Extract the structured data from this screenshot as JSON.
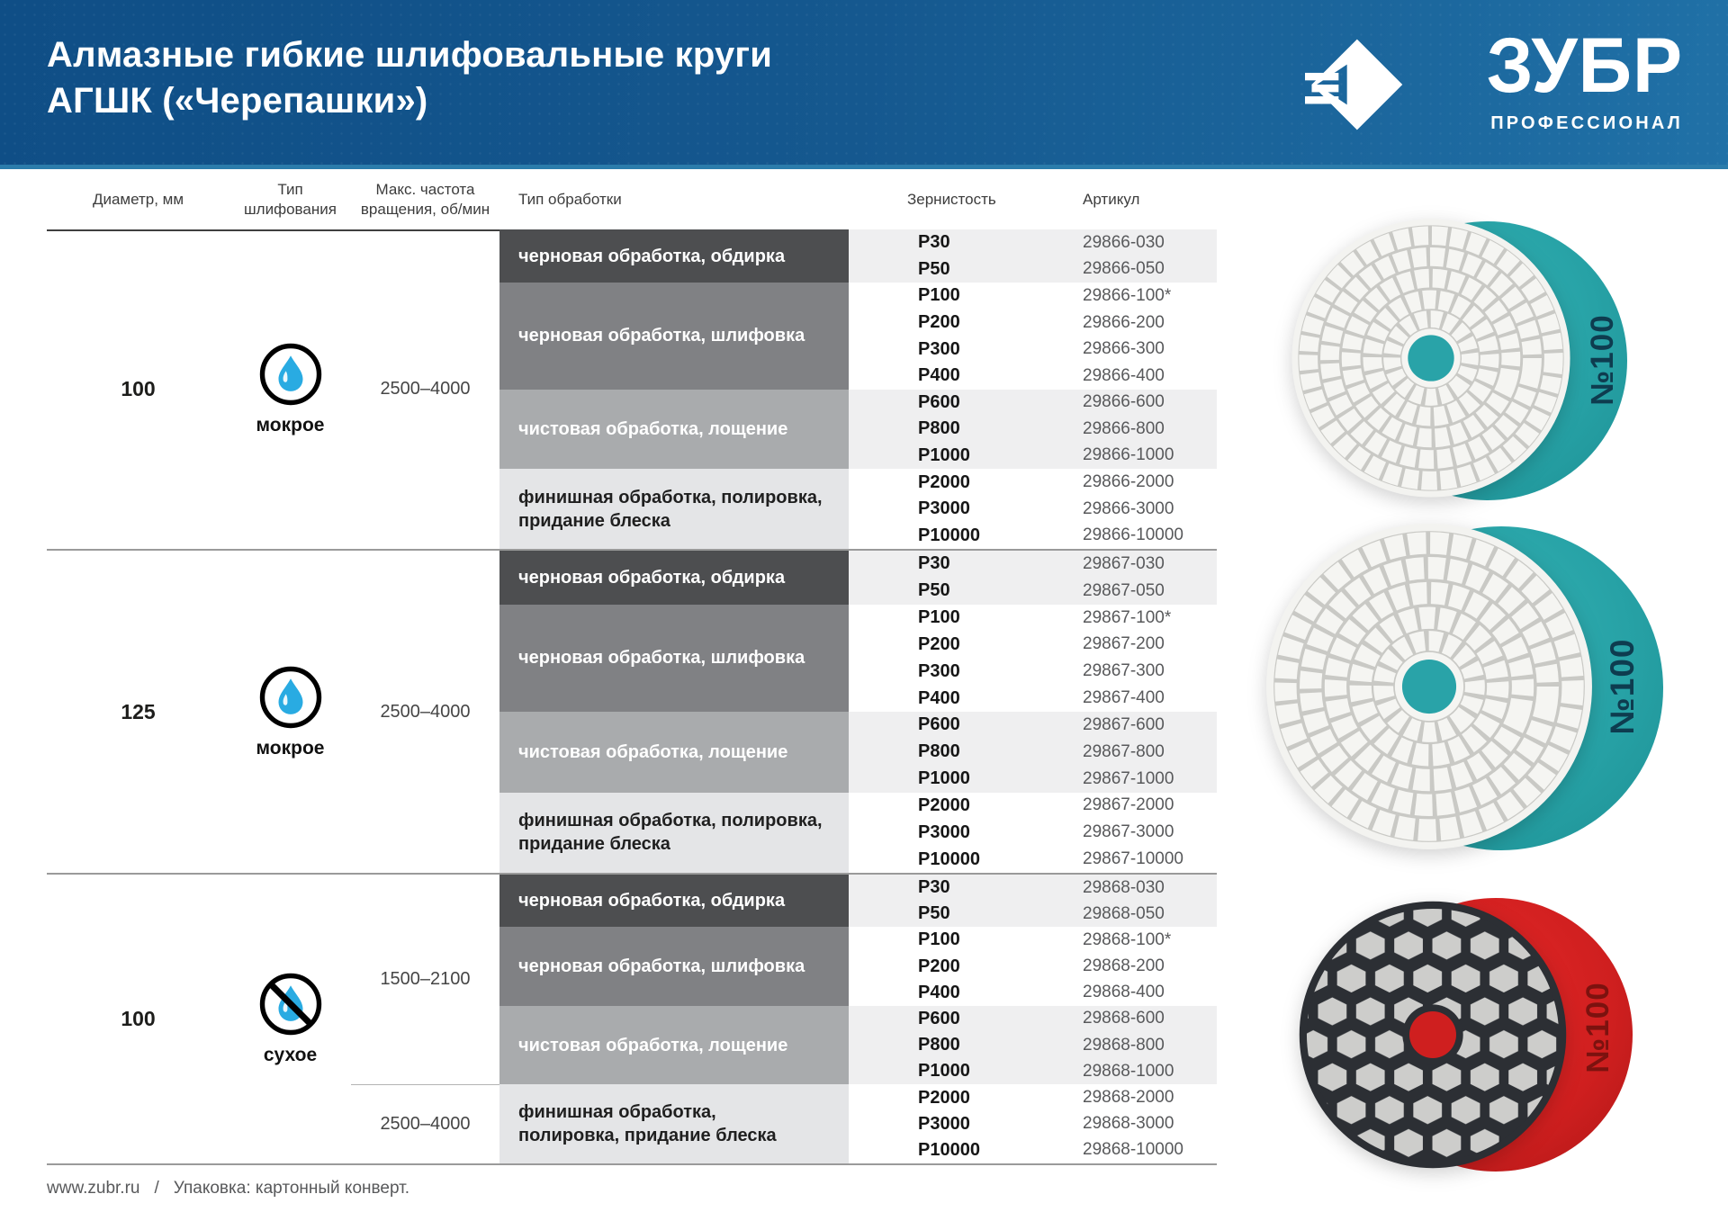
{
  "header": {
    "title_line1": "Алмазные гибкие шлифовальные круги",
    "title_line2": "АГШК («Черепашки»)",
    "brand": {
      "name": "ЗУБР",
      "subtitle": "ПРОФЕССИОНАЛ",
      "emblem_icon": "zubr-diamond-arrow-icon"
    },
    "background_color": "#15588f"
  },
  "table": {
    "columns": {
      "diameter": "Диаметр, мм",
      "grinding_type": "Тип шлифования",
      "max_speed": "Макс. частота\nвращения, об/мин",
      "processing_type": "Тип обработки",
      "grit": "Зернистость",
      "sku": "Артикул"
    },
    "groups": [
      {
        "diameter": "100",
        "grinding_type": "мокрое",
        "grinding_icon": "water-drop-icon",
        "speeds": [
          {
            "label": "2500–4000",
            "rows": 12
          }
        ],
        "blocks": [
          {
            "label": "черновая обработка, обдирка",
            "rows": [
              {
                "grit": "P30",
                "sku": "29866-030"
              },
              {
                "grit": "P50",
                "sku": "29866-050"
              }
            ]
          },
          {
            "label": "черновая обработка, шлифовка",
            "rows": [
              {
                "grit": "P100",
                "sku": "29866-100*"
              },
              {
                "grit": "P200",
                "sku": "29866-200"
              },
              {
                "grit": "P300",
                "sku": "29866-300"
              },
              {
                "grit": "P400",
                "sku": "29866-400"
              }
            ]
          },
          {
            "label": "чистовая обработка, лощение",
            "rows": [
              {
                "grit": "P600",
                "sku": "29866-600"
              },
              {
                "grit": "P800",
                "sku": "29866-800"
              },
              {
                "grit": "P1000",
                "sku": "29866-1000"
              }
            ]
          },
          {
            "label": "финишная обработка, полировка,\nпридание блеска",
            "rows": [
              {
                "grit": "P2000",
                "sku": "29866-2000"
              },
              {
                "grit": "P3000",
                "sku": "29866-3000"
              },
              {
                "grit": "P10000",
                "sku": "29866-10000"
              }
            ]
          }
        ]
      },
      {
        "diameter": "125",
        "grinding_type": "мокрое",
        "grinding_icon": "water-drop-icon",
        "speeds": [
          {
            "label": "2500–4000",
            "rows": 12
          }
        ],
        "blocks": [
          {
            "label": "черновая обработка, обдирка",
            "rows": [
              {
                "grit": "P30",
                "sku": "29867-030"
              },
              {
                "grit": "P50",
                "sku": "29867-050"
              }
            ]
          },
          {
            "label": "черновая обработка, шлифовка",
            "rows": [
              {
                "grit": "P100",
                "sku": "29867-100*"
              },
              {
                "grit": "P200",
                "sku": "29867-200"
              },
              {
                "grit": "P300",
                "sku": "29867-300"
              },
              {
                "grit": "P400",
                "sku": "29867-400"
              }
            ]
          },
          {
            "label": "чистовая обработка, лощение",
            "rows": [
              {
                "grit": "P600",
                "sku": "29867-600"
              },
              {
                "grit": "P800",
                "sku": "29867-800"
              },
              {
                "grit": "P1000",
                "sku": "29867-1000"
              }
            ]
          },
          {
            "label": "финишная обработка, полировка,\nпридание блеска",
            "rows": [
              {
                "grit": "P2000",
                "sku": "29867-2000"
              },
              {
                "grit": "P3000",
                "sku": "29867-3000"
              },
              {
                "grit": "P10000",
                "sku": "29867-10000"
              }
            ]
          }
        ]
      },
      {
        "diameter": "100",
        "grinding_type": "сухое",
        "grinding_icon": "no-water-icon",
        "speeds": [
          {
            "label": "1500–2100",
            "rows": 8
          },
          {
            "label": "2500–4000",
            "rows": 3
          }
        ],
        "blocks": [
          {
            "label": "черновая обработка, обдирка",
            "rows": [
              {
                "grit": "P30",
                "sku": "29868-030"
              },
              {
                "grit": "P50",
                "sku": "29868-050"
              }
            ]
          },
          {
            "label": "черновая обработка, шлифовка",
            "rows": [
              {
                "grit": "P100",
                "sku": "29868-100*"
              },
              {
                "grit": "P200",
                "sku": "29868-200"
              },
              {
                "grit": "P400",
                "sku": "29868-400"
              }
            ]
          },
          {
            "label": "чистовая обработка, лощение",
            "rows": [
              {
                "grit": "P600",
                "sku": "29868-600"
              },
              {
                "grit": "P800",
                "sku": "29868-800"
              },
              {
                "grit": "P1000",
                "sku": "29868-1000"
              }
            ]
          },
          {
            "label": "финишная обработка,\nполировка, придание блеска",
            "rows": [
              {
                "grit": "P2000",
                "sku": "29868-2000"
              },
              {
                "grit": "P3000",
                "sku": "29868-3000"
              },
              {
                "grit": "P10000",
                "sku": "29868-10000"
              }
            ]
          }
        ]
      }
    ]
  },
  "discs": [
    {
      "badge": "№100",
      "backing_color": "#27a2a6",
      "face": "white-mosaic"
    },
    {
      "badge": "№100",
      "backing_color": "#27a2a6",
      "face": "white-mosaic"
    },
    {
      "badge": "№100",
      "backing_color": "#cf1f1f",
      "face": "black-honeycomb"
    }
  ],
  "accent_colors": {
    "drop_cyan": "#29abe2",
    "teal": "#27a2a6",
    "red": "#cf1f1f"
  },
  "footer": {
    "website": "www.zubr.ru",
    "separator": "/",
    "packaging": "Упаковка: картонный конверт."
  }
}
